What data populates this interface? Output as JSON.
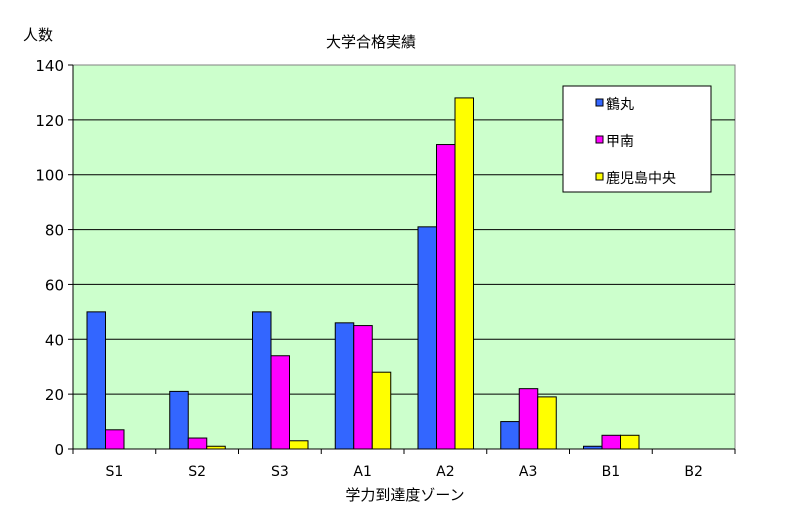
{
  "chart_data": {
    "type": "bar",
    "title": "大学合格実績",
    "ylabel": "人数",
    "xlabel": "学力到達度ゾーン",
    "ylim": [
      0,
      140
    ],
    "yticks": [
      0,
      20,
      40,
      60,
      80,
      100,
      120,
      140
    ],
    "categories": [
      "S1",
      "S2",
      "S3",
      "A1",
      "A2",
      "A3",
      "B1",
      "B2"
    ],
    "series": [
      {
        "name": "鶴丸",
        "color": "#3366ff",
        "values": [
          50,
          21,
          50,
          46,
          81,
          10,
          1,
          0
        ]
      },
      {
        "name": "甲南",
        "color": "#ff00ff",
        "values": [
          7,
          4,
          34,
          45,
          111,
          22,
          5,
          0
        ]
      },
      {
        "name": "鹿児島中央",
        "color": "#ffff00",
        "values": [
          0,
          1,
          3,
          28,
          128,
          19,
          5,
          0
        ]
      }
    ],
    "plot_background": "#ccffcc",
    "grid": true,
    "legend_position": "top-right"
  }
}
